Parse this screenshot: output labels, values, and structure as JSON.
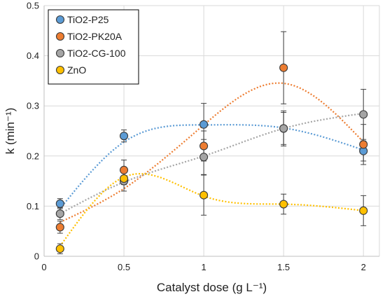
{
  "chart_data": {
    "type": "scatter",
    "title": "",
    "xlabel": "Catalyst dose (g L⁻¹)",
    "ylabel": "k (min⁻¹)",
    "xlim": [
      0,
      2.1
    ],
    "ylim": [
      0,
      0.5
    ],
    "x_ticks": [
      "0",
      "0.5",
      "1",
      "1.5",
      "2"
    ],
    "y_ticks": [
      "0",
      "0.1",
      "0.2",
      "0.3",
      "0.4",
      "0.5"
    ],
    "grid": true,
    "legend_position": "top-left",
    "x": [
      0.1,
      0.5,
      1,
      1.5,
      2
    ],
    "series": [
      {
        "name": "TiO2-P25",
        "color": "#5b9bd5",
        "values": [
          0.105,
          0.24,
          0.263,
          0.255,
          0.21
        ],
        "errors": [
          0.01,
          0.012,
          0.042,
          0.032,
          0.02
        ],
        "trend": [
          0.095,
          0.228,
          0.262,
          0.256,
          0.212
        ]
      },
      {
        "name": "TiO2-PK20A",
        "color": "#ed7d31",
        "values": [
          0.058,
          0.172,
          0.22,
          0.376,
          0.223
        ],
        "errors": [
          0.012,
          0.02,
          0.03,
          0.072,
          0.04
        ],
        "trend": [
          0.068,
          0.135,
          0.262,
          0.345,
          0.228
        ]
      },
      {
        "name": "TiO2-CG-100",
        "color": "#a5a5a5",
        "values": [
          0.085,
          0.15,
          0.198,
          0.255,
          0.283
        ],
        "errors": [
          0.012,
          0.02,
          0.035,
          0.035,
          0.05
        ],
        "trend": [
          0.085,
          0.148,
          0.2,
          0.255,
          0.285
        ]
      },
      {
        "name": "ZnO",
        "color": "#ffc000",
        "values": [
          0.015,
          0.155,
          0.122,
          0.104,
          0.091
        ],
        "errors": [
          0.01,
          0.012,
          0.04,
          0.02,
          0.03
        ],
        "trend": [
          0.02,
          0.158,
          0.12,
          0.104,
          0.091
        ]
      }
    ]
  }
}
